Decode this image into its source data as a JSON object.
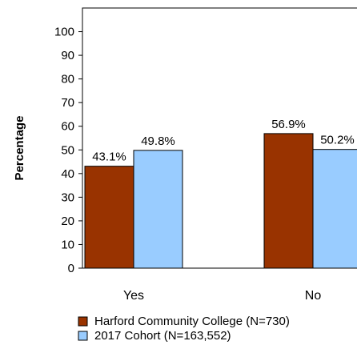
{
  "chart_data": {
    "type": "bar",
    "title": "",
    "xlabel": "",
    "ylabel": "Percentage",
    "ylim": [
      0,
      110
    ],
    "yticks": [
      0,
      10,
      20,
      30,
      40,
      50,
      60,
      70,
      80,
      90,
      100
    ],
    "categories": [
      "Yes",
      "No"
    ],
    "series": [
      {
        "name": "Harford Community College (N=730)",
        "values": [
          43.1,
          56.9
        ],
        "labels": [
          "43.1%",
          "56.9%"
        ],
        "color": "#993300"
      },
      {
        "name": "2017 Cohort (N=163,552)",
        "values": [
          49.8,
          50.2
        ],
        "labels": [
          "49.8%",
          "50.2%"
        ],
        "color": "#99ccff"
      }
    ],
    "grid": false,
    "legend_position": "bottom"
  }
}
